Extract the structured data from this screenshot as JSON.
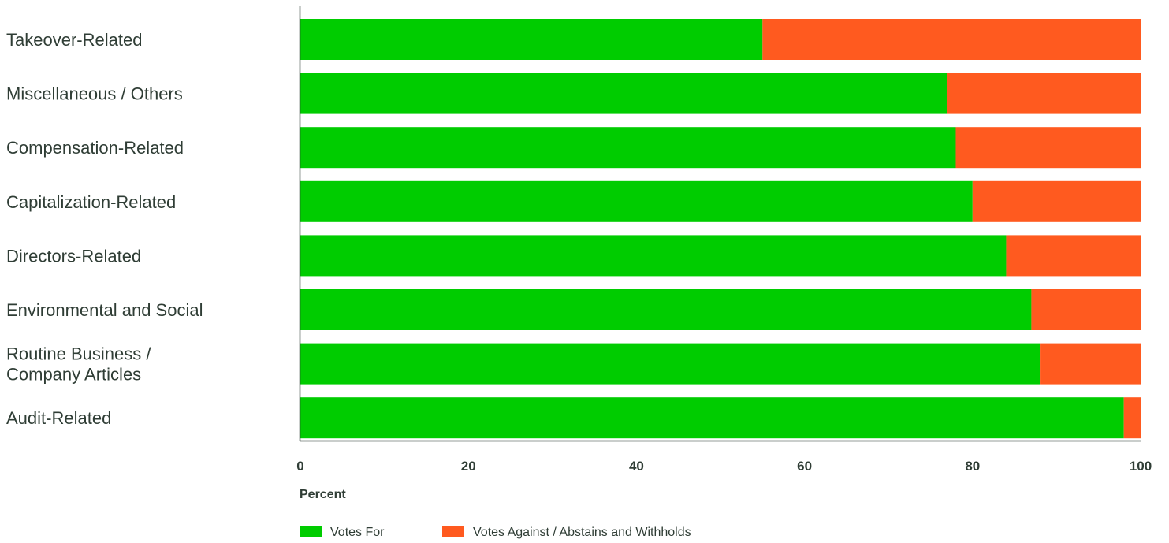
{
  "chart_data": {
    "type": "bar",
    "orientation": "horizontal",
    "stacked": true,
    "categories": [
      [
        "Takeover-Related"
      ],
      [
        "Miscellaneous / Others"
      ],
      [
        "Compensation-Related"
      ],
      [
        "Capitalization-Related"
      ],
      [
        "Directors-Related"
      ],
      [
        "Environmental and Social"
      ],
      [
        "Routine Business /",
        "Company Articles"
      ],
      [
        "Audit-Related"
      ]
    ],
    "series": [
      {
        "name": "Votes For",
        "color": "#00cc00",
        "values": [
          55,
          77,
          78,
          80,
          84,
          87,
          88,
          98
        ]
      },
      {
        "name": "Votes Against / Abstains and Withholds",
        "color": "#ff5a1f",
        "values": [
          45,
          23,
          22,
          20,
          16,
          13,
          12,
          2
        ]
      }
    ],
    "xlabel": "Percent",
    "xlim": [
      0,
      100
    ],
    "xticks": [
      "0",
      "20",
      "40",
      "60",
      "80",
      "100"
    ],
    "grid": false,
    "legend_position": "bottom-left"
  }
}
